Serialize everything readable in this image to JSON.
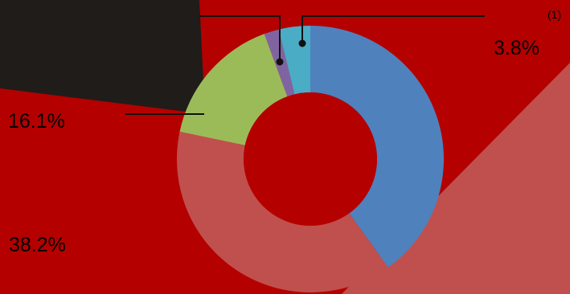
{
  "chart_data": {
    "type": "pie",
    "donut": true,
    "slices": [
      {
        "value": 40.1,
        "color": "#4F81BD"
      },
      {
        "value": 38.2,
        "color": "#C0504D",
        "label": "38.2%"
      },
      {
        "value": 16.1,
        "color": "#9BBB59",
        "label": "16.1%"
      },
      {
        "value": 1.8,
        "color": "#8064A2"
      },
      {
        "value": 3.8,
        "color": "#4BACC6",
        "label": "3.8%"
      }
    ],
    "annotations": [
      "(1)"
    ],
    "legend": "none",
    "background": "#B50000"
  }
}
